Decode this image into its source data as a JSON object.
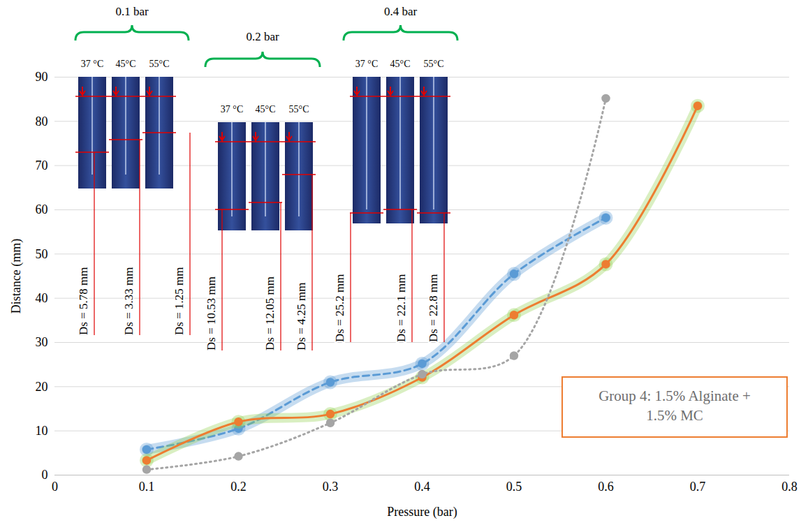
{
  "chart_data": {
    "type": "line",
    "x_label": "Pressure (bar)",
    "y_label": "Distance (mm)",
    "x": [
      0.1,
      0.2,
      0.3,
      0.4,
      0.5,
      0.6,
      0.7
    ],
    "series": [
      {
        "color": "#5b9bd5",
        "line_style": "dashed",
        "marker": "circle",
        "values": [
          5.78,
          10.53,
          21,
          25.2,
          45.5,
          58.2,
          null
        ]
      },
      {
        "color": "#ed7d31",
        "line_style": "solid",
        "marker": "circle",
        "values": [
          3.33,
          12.05,
          13.8,
          22.1,
          36.2,
          47.7,
          83.5
        ]
      },
      {
        "color": "#a5a5a5",
        "line_style": "dotted",
        "marker": "circle",
        "values": [
          1.25,
          4.25,
          11.8,
          22.8,
          27,
          85.2,
          null
        ]
      }
    ],
    "xlim": [
      0,
      0.8
    ],
    "xticks": [
      0,
      0.1,
      0.2,
      0.3,
      0.4,
      0.5,
      0.6,
      0.7,
      0.8
    ],
    "ylim": [
      0,
      90
    ],
    "yticks": [
      0,
      10,
      20,
      30,
      40,
      50,
      60,
      70,
      80,
      90
    ],
    "grid": true,
    "annotations": [
      {
        "label": "0.1 bar",
        "temperatures": [
          "37 °C",
          "45°C",
          "55°C"
        ],
        "ds": [
          "Ds = 5.78 mm",
          "Ds = 3.33 mm",
          "Ds = 1.25 mm"
        ]
      },
      {
        "label": "0.2 bar",
        "temperatures": [
          "37 °C",
          "45°C",
          "55°C"
        ],
        "ds": [
          "Ds = 10.53 mm",
          "Ds = 12.05 mm",
          "Ds = 4.25 mm"
        ]
      },
      {
        "label": "0.4 bar",
        "temperatures": [
          "37 °C",
          "45°C",
          "55°C"
        ],
        "ds": [
          "Ds = 25.2 mm",
          "Ds = 22.1 mm",
          "Ds = 22.8 mm"
        ]
      }
    ],
    "text_box": "Group 4: 1.5% Alginate + 1.5% MC"
  }
}
